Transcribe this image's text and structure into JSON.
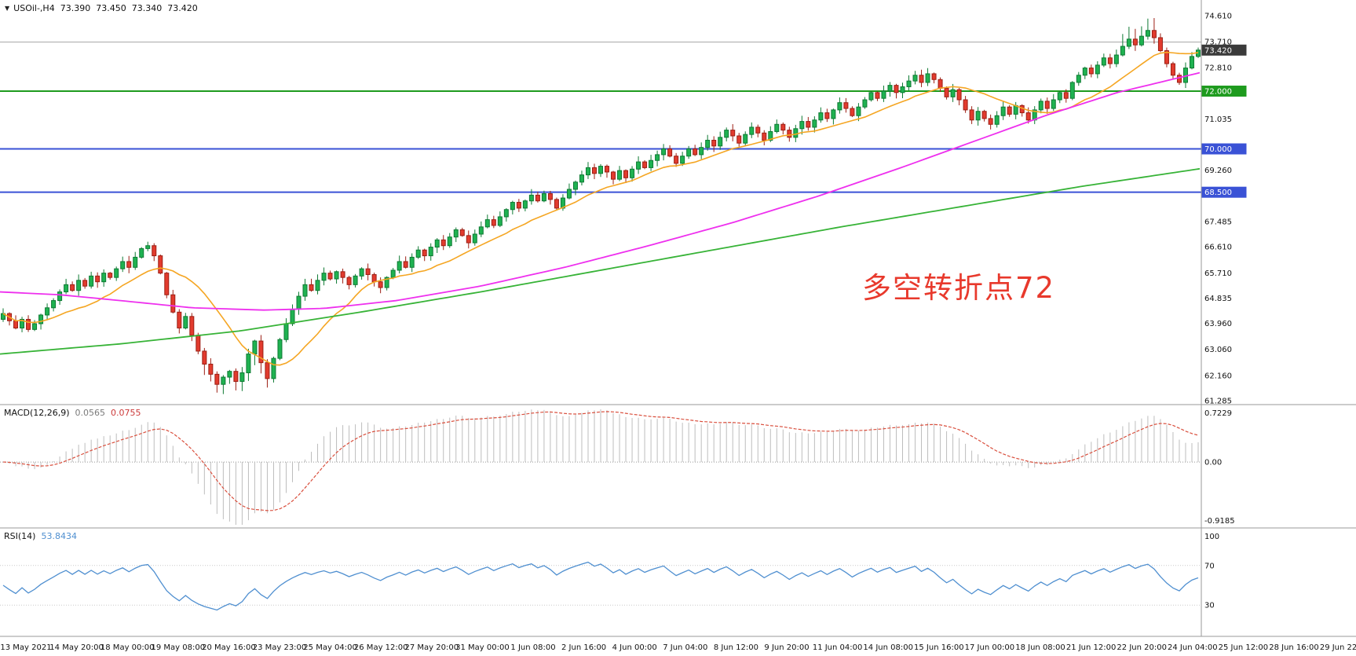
{
  "title": {
    "symbol": "USOil-,H4",
    "open": "73.390",
    "high": "73.450",
    "low": "73.340",
    "close": "73.420"
  },
  "macd": {
    "name": "MACD(12,26,9)",
    "main_value": "0.0565",
    "signal_value": "0.0755"
  },
  "rsi": {
    "name": "RSI(14)",
    "value": "53.8434"
  },
  "annotation": {
    "text": "多空转折点72",
    "color": "#e8392c"
  },
  "chart_data": {
    "type": "candlestick",
    "symbol": "USOil",
    "timeframe": "H4",
    "title": "USOil-,H4 73.390 73.450 73.340 73.420",
    "price_range": [
      61.285,
      74.61
    ],
    "closes": [
      64.3,
      64.05,
      63.8,
      64.1,
      63.75,
      63.95,
      64.25,
      64.5,
      64.75,
      65.05,
      65.3,
      65.1,
      65.45,
      65.25,
      65.6,
      65.4,
      65.7,
      65.55,
      65.85,
      66.1,
      65.9,
      66.25,
      66.55,
      66.65,
      66.3,
      65.7,
      64.95,
      64.35,
      63.8,
      64.2,
      63.55,
      63.0,
      62.55,
      62.2,
      61.85,
      62.1,
      62.3,
      61.95,
      62.25,
      62.9,
      63.35,
      62.6,
      62.05,
      62.75,
      63.4,
      63.95,
      64.45,
      64.9,
      65.3,
      65.1,
      65.45,
      65.7,
      65.5,
      65.75,
      65.55,
      65.3,
      65.6,
      65.85,
      65.65,
      65.4,
      65.2,
      65.55,
      65.8,
      66.1,
      65.9,
      66.25,
      66.5,
      66.3,
      66.6,
      66.85,
      66.65,
      66.95,
      67.2,
      67.0,
      66.75,
      67.05,
      67.3,
      67.55,
      67.35,
      67.65,
      67.9,
      68.15,
      67.95,
      68.2,
      68.4,
      68.2,
      68.45,
      68.25,
      67.95,
      68.3,
      68.6,
      68.85,
      69.1,
      69.35,
      69.15,
      69.4,
      69.2,
      68.95,
      69.25,
      69.0,
      69.3,
      69.55,
      69.35,
      69.6,
      69.8,
      70.0,
      69.75,
      69.5,
      69.75,
      70.0,
      69.8,
      70.05,
      70.3,
      70.1,
      70.4,
      70.65,
      70.45,
      70.2,
      70.5,
      70.75,
      70.55,
      70.3,
      70.6,
      70.85,
      70.65,
      70.4,
      70.7,
      70.95,
      70.75,
      71.0,
      71.25,
      71.05,
      71.35,
      71.6,
      71.4,
      71.15,
      71.45,
      71.7,
      71.95,
      71.75,
      72.0,
      72.2,
      71.95,
      72.15,
      72.35,
      72.55,
      72.3,
      72.6,
      72.4,
      72.1,
      71.8,
      72.05,
      71.7,
      71.35,
      71.0,
      71.3,
      71.05,
      70.85,
      71.15,
      71.45,
      71.2,
      71.5,
      71.25,
      71.0,
      71.35,
      71.65,
      71.4,
      71.7,
      71.95,
      71.75,
      72.3,
      72.55,
      72.8,
      72.6,
      72.9,
      73.15,
      72.95,
      73.25,
      73.55,
      73.8,
      73.6,
      73.9,
      74.1,
      73.85,
      73.4,
      72.95,
      72.55,
      72.3,
      72.8,
      73.2,
      73.42
    ],
    "y_ticks": [
      74.61,
      73.71,
      72.81,
      71.035,
      69.26,
      67.485,
      66.61,
      65.71,
      64.835,
      63.96,
      63.06,
      62.16,
      61.285
    ],
    "badges": [
      {
        "text": "73.420",
        "price": 73.42,
        "color": "#3a3a3a"
      },
      {
        "text": "72.000",
        "price": 72.0,
        "color": "#1e9b1e"
      },
      {
        "text": "70.000",
        "price": 70.0,
        "color": "#3a52d6"
      },
      {
        "text": "68.500",
        "price": 68.5,
        "color": "#3a52d6"
      }
    ],
    "hlines": [
      {
        "price": 73.7,
        "color": "#a8a8a8",
        "width": 1
      },
      {
        "price": 72.0,
        "color": "#1e9b1e",
        "width": 2
      },
      {
        "price": 70.0,
        "color": "#3a52d6",
        "width": 2
      },
      {
        "price": 68.5,
        "color": "#3a52d6",
        "width": 2
      }
    ],
    "ma": {
      "fast_period": 14,
      "colors": {
        "fast": "#f5a623",
        "mid": "#ee30ee",
        "slow": "#37b337"
      },
      "mid_anchors": [
        [
          0,
          65.05
        ],
        [
          0.05,
          64.95
        ],
        [
          0.1,
          64.75
        ],
        [
          0.16,
          64.5
        ],
        [
          0.22,
          64.42
        ],
        [
          0.27,
          64.48
        ],
        [
          0.33,
          64.75
        ],
        [
          0.4,
          65.25
        ],
        [
          0.47,
          65.9
        ],
        [
          0.54,
          66.65
        ],
        [
          0.61,
          67.45
        ],
        [
          0.68,
          68.35
        ],
        [
          0.75,
          69.35
        ],
        [
          0.81,
          70.25
        ],
        [
          0.87,
          71.15
        ],
        [
          0.93,
          71.95
        ],
        [
          1,
          72.65
        ]
      ],
      "slow_anchors": [
        [
          0,
          62.9
        ],
        [
          0.1,
          63.25
        ],
        [
          0.2,
          63.7
        ],
        [
          0.3,
          64.35
        ],
        [
          0.4,
          65.05
        ],
        [
          0.5,
          65.8
        ],
        [
          0.6,
          66.55
        ],
        [
          0.7,
          67.3
        ],
        [
          0.8,
          68.0
        ],
        [
          0.9,
          68.7
        ],
        [
          1,
          69.32
        ]
      ]
    },
    "candle_colors": {
      "up_fill": "#1fb251",
      "up_stroke": "#0e7a33",
      "down_fill": "#e23b2e",
      "down_stroke": "#9c1f14"
    },
    "macd_panel": {
      "axis": [
        "0.7229",
        "0.00",
        "-0.9185"
      ],
      "hist_color": "#bdbdbd",
      "signal_color": "#d94f3d"
    },
    "rsi_panel": {
      "axis": [
        "100",
        "70",
        "30"
      ],
      "levels": [
        70,
        30
      ],
      "line_color": "#4f8fd0"
    },
    "time_labels": [
      "13 May 2021",
      "14 May 20:00",
      "18 May 00:00",
      "19 May 08:00",
      "20 May 16:00",
      "23 May 23:00",
      "25 May 04:00",
      "26 May 12:00",
      "27 May 20:00",
      "31 May 00:00",
      "1 Jun 08:00",
      "2 Jun 16:00",
      "4 Jun 00:00",
      "7 Jun 04:00",
      "8 Jun 12:00",
      "9 Jun 20:00",
      "11 Jun 04:00",
      "14 Jun 08:00",
      "15 Jun 16:00",
      "17 Jun 00:00",
      "18 Jun 08:00",
      "21 Jun 12:00",
      "22 Jun 20:00",
      "24 Jun 04:00",
      "25 Jun 12:00",
      "28 Jun 16:00",
      "29 Jun 22:00"
    ]
  }
}
